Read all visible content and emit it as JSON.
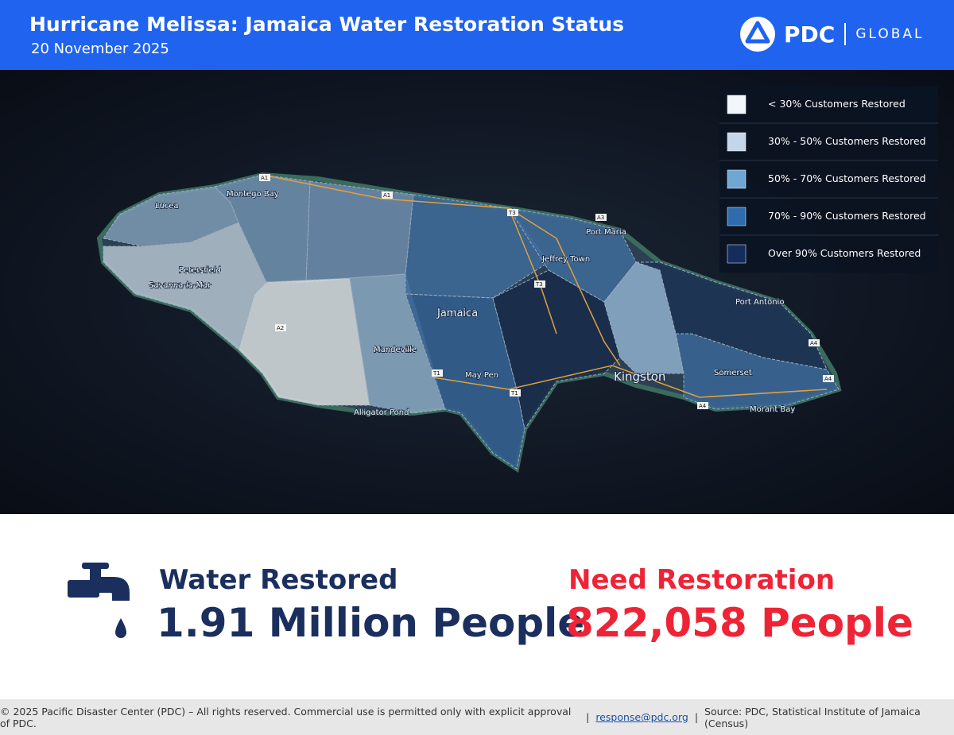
{
  "header": {
    "title": "Hurricane Melissa: Jamaica Water Restoration Status",
    "date": "20 November 2025",
    "logo": {
      "brand": "PDC",
      "suffix": "GLOBAL"
    }
  },
  "legend": [
    {
      "label": "< 30% Customers Restored",
      "color": "#f3f7fc"
    },
    {
      "label": "30% - 50% Customers Restored",
      "color": "#c3d6ea"
    },
    {
      "label": "50% - 70% Customers Restored",
      "color": "#6ea7d2"
    },
    {
      "label": "70% - 90% Customers Restored",
      "color": "#2f6cae"
    },
    {
      "label": "Over 90% Customers Restored",
      "color": "#132d5c"
    }
  ],
  "map_labels": [
    "Montego Bay",
    "Lucea",
    "Petersfield",
    "Savanna-la-Mar",
    "Mandeville",
    "Alligator Pond",
    "Jamaica",
    "May Pen",
    "Jeffrey Town",
    "Port Maria",
    "Port Antonio",
    "Kingston",
    "Somerset",
    "Morant Bay",
    "A1",
    "A1",
    "A2",
    "T1",
    "T1",
    "T3",
    "T3",
    "A3",
    "A4",
    "A4",
    "A4"
  ],
  "stats": {
    "restored": {
      "label": "Water Restored",
      "value": "1.91 Million People"
    },
    "needed": {
      "label": "Need Restoration",
      "value": "822,058 People"
    }
  },
  "footer": {
    "copyright": "© 2025 Pacific Disaster Center (PDC) – All rights reserved. Commercial use is permitted only with explicit approval of PDC.",
    "email": "response@pdc.org",
    "source": "Source: PDC, Statistical Institute of Jamaica (Census)"
  }
}
